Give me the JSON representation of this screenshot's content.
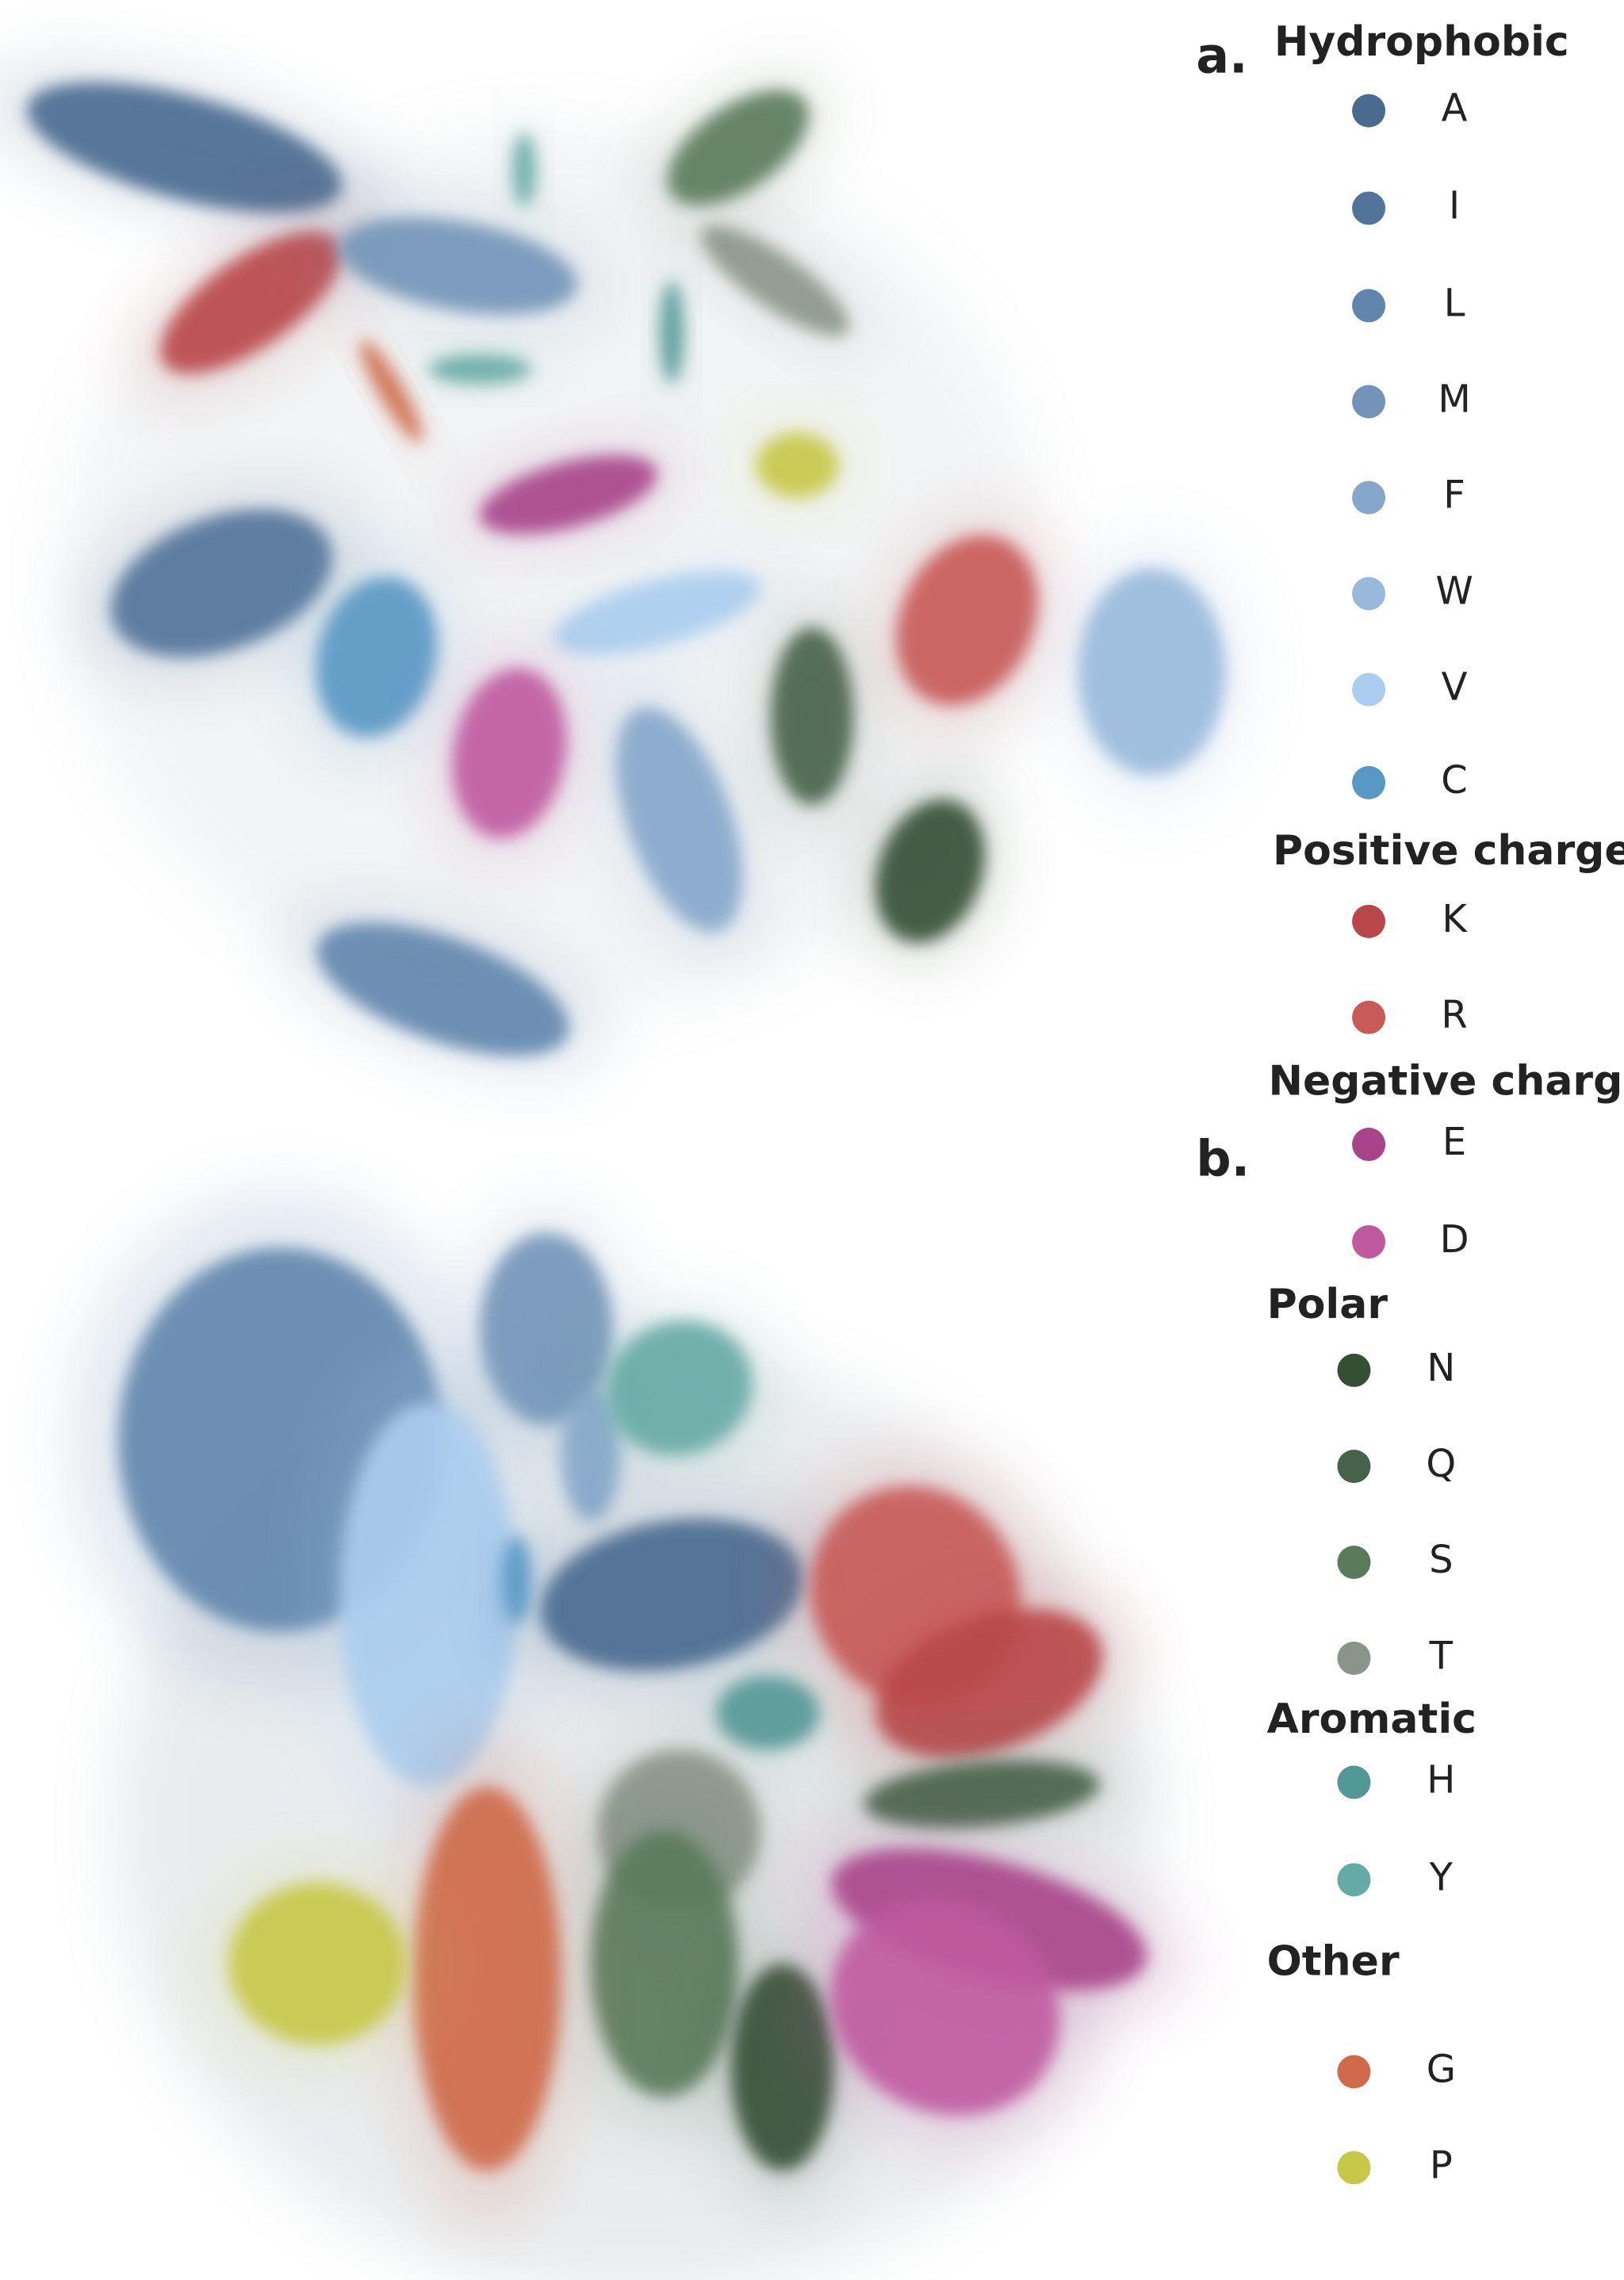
{
  "panels": [
    {
      "label": "a."
    },
    {
      "label": "b."
    }
  ],
  "legend": {
    "groups": [
      {
        "title": "Hydrophobic",
        "items": [
          {
            "label": "A",
            "color": "#4a6a90"
          },
          {
            "label": "I",
            "color": "#52739a"
          },
          {
            "label": "L",
            "color": "#6086ad"
          },
          {
            "label": "M",
            "color": "#7394b8"
          },
          {
            "label": "F",
            "color": "#86a7cb"
          },
          {
            "label": "W",
            "color": "#98b9dc"
          },
          {
            "label": "V",
            "color": "#abcdef"
          },
          {
            "label": "C",
            "color": "#5898c4"
          }
        ]
      },
      {
        "title": "Positive charge",
        "items": [
          {
            "label": "K",
            "color": "#b9474a"
          },
          {
            "label": "R",
            "color": "#c85a58"
          }
        ]
      },
      {
        "title": "Negative charge",
        "items": [
          {
            "label": "E",
            "color": "#a8458a"
          },
          {
            "label": "D",
            "color": "#c05aa0"
          }
        ]
      },
      {
        "title": "Polar",
        "items": [
          {
            "label": "N",
            "color": "#345034"
          },
          {
            "label": "Q",
            "color": "#46624a"
          },
          {
            "label": "S",
            "color": "#5a7a5c"
          },
          {
            "label": "T",
            "color": "#8a958a"
          }
        ]
      },
      {
        "title": "Aromatic",
        "items": [
          {
            "label": "H",
            "color": "#529896"
          },
          {
            "label": "Y",
            "color": "#66aaa5"
          }
        ]
      },
      {
        "title": "Other",
        "items": [
          {
            "label": "G",
            "color": "#cf6a4a"
          },
          {
            "label": "P",
            "color": "#c8c848"
          }
        ]
      }
    ]
  }
}
